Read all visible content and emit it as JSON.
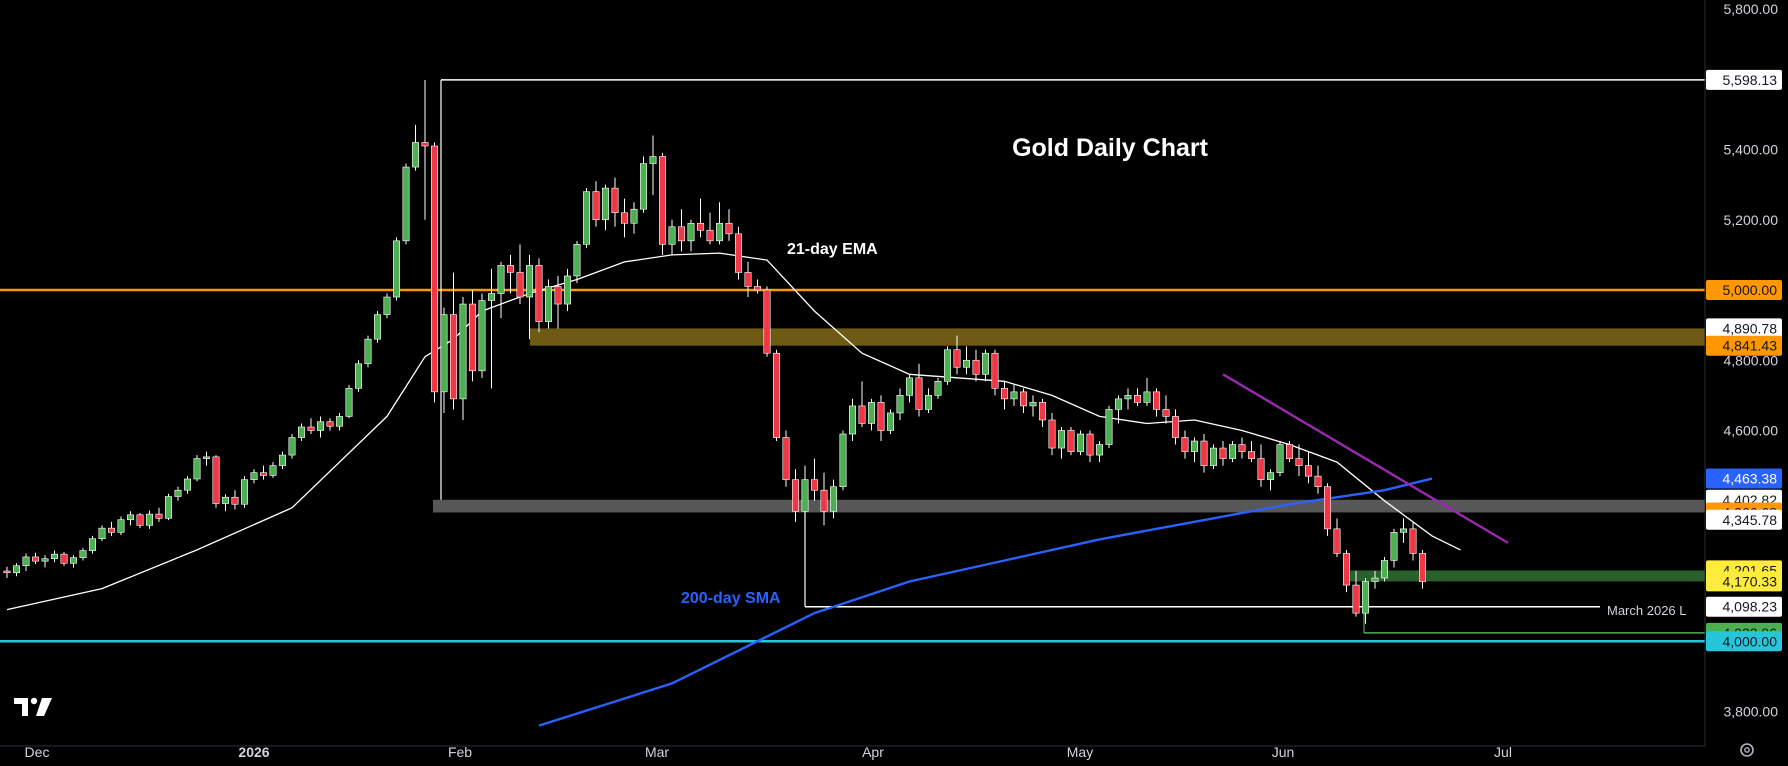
{
  "chart_data": {
    "type": "candlestick",
    "title": "Gold Daily Chart",
    "ylim": [
      3740,
      5800
    ],
    "y_ticks": [
      "5,800.00",
      "5,400.00",
      "5,200.00",
      "4,800.00",
      "4,600.00",
      "3,800.00"
    ],
    "x_ticks": [
      {
        "label": "Dec",
        "bold": false
      },
      {
        "label": "2026",
        "bold": true
      },
      {
        "label": "Feb",
        "bold": false
      },
      {
        "label": "Mar",
        "bold": false
      },
      {
        "label": "Apr",
        "bold": false
      },
      {
        "label": "May",
        "bold": false
      },
      {
        "label": "Jun",
        "bold": false
      },
      {
        "label": "Jul",
        "bold": false
      }
    ],
    "annotations": {
      "ema": "21-day EMA",
      "sma": "200-day SMA",
      "march_low": "March 2026 L"
    },
    "price_tags": [
      {
        "value": 5598.13,
        "label": "5,598.13",
        "bg": "#ffffff",
        "fg": "#131722"
      },
      {
        "value": 5000.0,
        "label": "5,000.00",
        "bg": "#ff9800",
        "fg": "#131722"
      },
      {
        "value": 4890.78,
        "label": "4,890.78",
        "bg": "#ffffff",
        "fg": "#131722"
      },
      {
        "value": 4841.43,
        "label": "4,841.43",
        "bg": "#ff9800",
        "fg": "#131722"
      },
      {
        "value": 4463.38,
        "label": "4,463.38",
        "bg": "#2962ff",
        "fg": "#ffffff"
      },
      {
        "value": 4402.82,
        "label": "4,402.82",
        "bg": "#ffffff",
        "fg": "#131722"
      },
      {
        "value": 4366.68,
        "label": "4,366.68",
        "bg": "#ff9800",
        "fg": "#131722"
      },
      {
        "value": 4345.78,
        "label": "4,345.78",
        "bg": "#ffffff",
        "fg": "#131722"
      },
      {
        "value": 4201.65,
        "label": "4,201.65",
        "bg": "#ffeb3b",
        "fg": "#131722"
      },
      {
        "value": 4170.33,
        "label": "4,170.33",
        "bg": "#ffeb3b",
        "fg": "#131722"
      },
      {
        "value": 4098.23,
        "label": "4,098.23",
        "bg": "#ffffff",
        "fg": "#131722"
      },
      {
        "value": 4023.86,
        "label": "4,023.86",
        "bg": "#4caf50",
        "fg": "#131722"
      },
      {
        "value": 4000.0,
        "label": "4,000.00",
        "bg": "#26c6da",
        "fg": "#131722"
      }
    ],
    "levels": [
      {
        "name": "all-time-high",
        "value": 5598.13,
        "color": "#ffffff"
      },
      {
        "name": "5000",
        "value": 5000.0,
        "color": "#ff9800"
      },
      {
        "name": "4000",
        "value": 4000.0,
        "color": "#26c6da"
      },
      {
        "name": "march-2026-low",
        "value": 4098.23,
        "color": "#ffffff"
      },
      {
        "name": "4023",
        "value": 4023.86,
        "color": "#4caf50"
      }
    ],
    "zones": [
      {
        "name": "resistance-4841-4890",
        "low": 4841.43,
        "high": 4890.78,
        "color": "#c9a227"
      },
      {
        "name": "support-4366-4402",
        "low": 4366.68,
        "high": 4402.82,
        "color": "#9e9e9e"
      },
      {
        "name": "support-4170-4201",
        "low": 4170.33,
        "high": 4201.65,
        "color": "#4caf50"
      }
    ],
    "colors": {
      "up": "#4caf50",
      "down": "#f23645",
      "ema": "#ffffff",
      "sma": "#2962ff",
      "trendline": "#9c27b0",
      "ema_label": "#ffffff",
      "sma_label": "#2962ff"
    },
    "candles": [
      [
        4200,
        4212,
        4180,
        4195
      ],
      [
        4195,
        4222,
        4185,
        4215
      ],
      [
        4215,
        4250,
        4200,
        4240
      ],
      [
        4240,
        4252,
        4220,
        4228
      ],
      [
        4228,
        4245,
        4210,
        4235
      ],
      [
        4235,
        4258,
        4225,
        4248
      ],
      [
        4248,
        4254,
        4215,
        4222
      ],
      [
        4222,
        4245,
        4210,
        4238
      ],
      [
        4238,
        4265,
        4230,
        4258
      ],
      [
        4258,
        4300,
        4250,
        4292
      ],
      [
        4292,
        4330,
        4285,
        4322
      ],
      [
        4322,
        4340,
        4300,
        4310
      ],
      [
        4310,
        4355,
        4302,
        4346
      ],
      [
        4346,
        4370,
        4330,
        4360
      ],
      [
        4360,
        4365,
        4322,
        4330
      ],
      [
        4330,
        4372,
        4320,
        4362
      ],
      [
        4362,
        4380,
        4340,
        4350
      ],
      [
        4350,
        4420,
        4345,
        4412
      ],
      [
        4412,
        4440,
        4400,
        4430
      ],
      [
        4430,
        4470,
        4420,
        4462
      ],
      [
        4462,
        4530,
        4455,
        4520
      ],
      [
        4520,
        4540,
        4500,
        4525
      ],
      [
        4525,
        4530,
        4380,
        4392
      ],
      [
        4392,
        4418,
        4370,
        4410
      ],
      [
        4410,
        4430,
        4375,
        4390
      ],
      [
        4390,
        4470,
        4380,
        4460
      ],
      [
        4460,
        4490,
        4450,
        4480
      ],
      [
        4480,
        4500,
        4460,
        4472
      ],
      [
        4472,
        4510,
        4465,
        4500
      ],
      [
        4500,
        4540,
        4490,
        4530
      ],
      [
        4530,
        4590,
        4520,
        4580
      ],
      [
        4580,
        4620,
        4570,
        4610
      ],
      [
        4610,
        4635,
        4590,
        4600
      ],
      [
        4600,
        4640,
        4580,
        4625
      ],
      [
        4625,
        4635,
        4600,
        4612
      ],
      [
        4612,
        4650,
        4600,
        4640
      ],
      [
        4640,
        4730,
        4635,
        4720
      ],
      [
        4720,
        4800,
        4710,
        4790
      ],
      [
        4790,
        4870,
        4780,
        4860
      ],
      [
        4860,
        4940,
        4850,
        4930
      ],
      [
        4930,
        4990,
        4920,
        4980
      ],
      [
        4980,
        5150,
        4970,
        5140
      ],
      [
        5140,
        5360,
        5130,
        5350
      ],
      [
        5350,
        5470,
        5340,
        5420
      ],
      [
        5420,
        5598,
        5200,
        5410
      ],
      [
        5410,
        5420,
        4680,
        4710
      ],
      [
        4710,
        4950,
        4650,
        4930
      ],
      [
        4930,
        5050,
        4660,
        4690
      ],
      [
        4690,
        4980,
        4630,
        4960
      ],
      [
        4960,
        5000,
        4740,
        4770
      ],
      [
        4770,
        4990,
        4750,
        4970
      ],
      [
        4970,
        5060,
        4720,
        4990
      ],
      [
        4990,
        5080,
        4920,
        5070
      ],
      [
        5070,
        5100,
        4990,
        5050
      ],
      [
        5050,
        5130,
        4960,
        4980
      ],
      [
        4980,
        5100,
        4860,
        5070
      ],
      [
        5070,
        5090,
        4880,
        4910
      ],
      [
        4910,
        5030,
        4890,
        5010
      ],
      [
        5010,
        5040,
        4890,
        4960
      ],
      [
        4960,
        5060,
        4940,
        5040
      ],
      [
        5040,
        5140,
        5020,
        5130
      ],
      [
        5130,
        5290,
        5120,
        5280
      ],
      [
        5280,
        5310,
        5180,
        5200
      ],
      [
        5200,
        5300,
        5170,
        5290
      ],
      [
        5290,
        5320,
        5180,
        5220
      ],
      [
        5220,
        5260,
        5150,
        5190
      ],
      [
        5190,
        5250,
        5160,
        5230
      ],
      [
        5230,
        5380,
        5220,
        5360
      ],
      [
        5360,
        5440,
        5270,
        5380
      ],
      [
        5380,
        5390,
        5100,
        5130
      ],
      [
        5130,
        5200,
        5100,
        5180
      ],
      [
        5180,
        5230,
        5110,
        5140
      ],
      [
        5140,
        5200,
        5110,
        5190
      ],
      [
        5190,
        5260,
        5150,
        5170
      ],
      [
        5170,
        5220,
        5130,
        5140
      ],
      [
        5140,
        5250,
        5130,
        5190
      ],
      [
        5190,
        5230,
        5140,
        5160
      ],
      [
        5160,
        5180,
        5030,
        5050
      ],
      [
        5050,
        5080,
        4980,
        5010
      ],
      [
        5010,
        5030,
        4990,
        5000
      ],
      [
        5000,
        5010,
        4810,
        4820
      ],
      [
        4820,
        4830,
        4570,
        4580
      ],
      [
        4580,
        4600,
        4440,
        4460
      ],
      [
        4460,
        4490,
        4340,
        4370
      ],
      [
        4370,
        4500,
        4320,
        4460
      ],
      [
        4460,
        4520,
        4400,
        4430
      ],
      [
        4430,
        4480,
        4330,
        4370
      ],
      [
        4370,
        4460,
        4350,
        4440
      ],
      [
        4440,
        4600,
        4430,
        4590
      ],
      [
        4590,
        4690,
        4570,
        4670
      ],
      [
        4670,
        4740,
        4610,
        4620
      ],
      [
        4620,
        4690,
        4600,
        4680
      ],
      [
        4680,
        4700,
        4570,
        4600
      ],
      [
        4600,
        4660,
        4590,
        4650
      ],
      [
        4650,
        4720,
        4630,
        4700
      ],
      [
        4700,
        4760,
        4680,
        4750
      ],
      [
        4750,
        4790,
        4640,
        4660
      ],
      [
        4660,
        4720,
        4650,
        4700
      ],
      [
        4700,
        4750,
        4690,
        4740
      ],
      [
        4740,
        4840,
        4730,
        4830
      ],
      [
        4830,
        4870,
        4760,
        4780
      ],
      [
        4780,
        4840,
        4760,
        4800
      ],
      [
        4800,
        4830,
        4740,
        4760
      ],
      [
        4760,
        4830,
        4740,
        4820
      ],
      [
        4820,
        4830,
        4700,
        4720
      ],
      [
        4720,
        4740,
        4660,
        4690
      ],
      [
        4690,
        4730,
        4670,
        4710
      ],
      [
        4710,
        4720,
        4650,
        4670
      ],
      [
        4670,
        4700,
        4640,
        4680
      ],
      [
        4680,
        4690,
        4610,
        4630
      ],
      [
        4630,
        4650,
        4530,
        4550
      ],
      [
        4550,
        4610,
        4520,
        4600
      ],
      [
        4600,
        4610,
        4530,
        4540
      ],
      [
        4540,
        4600,
        4530,
        4590
      ],
      [
        4590,
        4600,
        4510,
        4530
      ],
      [
        4530,
        4570,
        4510,
        4560
      ],
      [
        4560,
        4670,
        4550,
        4660
      ],
      [
        4660,
        4700,
        4620,
        4690
      ],
      [
        4690,
        4720,
        4660,
        4700
      ],
      [
        4700,
        4720,
        4670,
        4680
      ],
      [
        4680,
        4750,
        4670,
        4710
      ],
      [
        4710,
        4720,
        4640,
        4660
      ],
      [
        4660,
        4700,
        4620,
        4640
      ],
      [
        4640,
        4660,
        4560,
        4580
      ],
      [
        4580,
        4600,
        4520,
        4540
      ],
      [
        4540,
        4580,
        4510,
        4570
      ],
      [
        4570,
        4590,
        4480,
        4500
      ],
      [
        4500,
        4560,
        4490,
        4550
      ],
      [
        4550,
        4570,
        4500,
        4520
      ],
      [
        4520,
        4570,
        4510,
        4560
      ],
      [
        4560,
        4580,
        4520,
        4540
      ],
      [
        4540,
        4570,
        4510,
        4520
      ],
      [
        4520,
        4560,
        4440,
        4460
      ],
      [
        4460,
        4490,
        4430,
        4480
      ],
      [
        4480,
        4570,
        4470,
        4560
      ],
      [
        4560,
        4570,
        4510,
        4520
      ],
      [
        4520,
        4560,
        4470,
        4500
      ],
      [
        4500,
        4540,
        4450,
        4470
      ],
      [
        4470,
        4500,
        4420,
        4440
      ],
      [
        4440,
        4450,
        4300,
        4320
      ],
      [
        4320,
        4350,
        4240,
        4250
      ],
      [
        4250,
        4260,
        4140,
        4160
      ],
      [
        4160,
        4200,
        4070,
        4080
      ],
      [
        4080,
        4180,
        4050,
        4170
      ],
      [
        4170,
        4200,
        4150,
        4180
      ],
      [
        4180,
        4240,
        4170,
        4230
      ],
      [
        4230,
        4320,
        4210,
        4310
      ],
      [
        4310,
        4350,
        4280,
        4320
      ],
      [
        4320,
        4340,
        4230,
        4250
      ],
      [
        4250,
        4260,
        4150,
        4170
      ]
    ],
    "ema_points": [
      [
        0,
        4090
      ],
      [
        10,
        4150
      ],
      [
        20,
        4260
      ],
      [
        30,
        4380
      ],
      [
        40,
        4640
      ],
      [
        44,
        4810
      ],
      [
        47,
        4860
      ],
      [
        50,
        4940
      ],
      [
        55,
        4990
      ],
      [
        60,
        5030
      ],
      [
        65,
        5080
      ],
      [
        70,
        5100
      ],
      [
        75,
        5105
      ],
      [
        80,
        5085
      ],
      [
        85,
        4940
      ],
      [
        90,
        4820
      ],
      [
        95,
        4760
      ],
      [
        100,
        4750
      ],
      [
        105,
        4740
      ],
      [
        110,
        4700
      ],
      [
        115,
        4640
      ],
      [
        120,
        4620
      ],
      [
        125,
        4630
      ],
      [
        130,
        4600
      ],
      [
        135,
        4560
      ],
      [
        140,
        4510
      ],
      [
        145,
        4400
      ],
      [
        150,
        4300
      ],
      [
        153,
        4260
      ]
    ],
    "sma_points": [
      [
        56,
        3760
      ],
      [
        70,
        3880
      ],
      [
        85,
        4080
      ],
      [
        95,
        4170
      ],
      [
        105,
        4230
      ],
      [
        115,
        4290
      ],
      [
        125,
        4340
      ],
      [
        135,
        4390
      ],
      [
        145,
        4430
      ],
      [
        150,
        4463
      ]
    ],
    "trendline_points": [
      [
        128,
        4760
      ],
      [
        158,
        4280
      ]
    ]
  }
}
